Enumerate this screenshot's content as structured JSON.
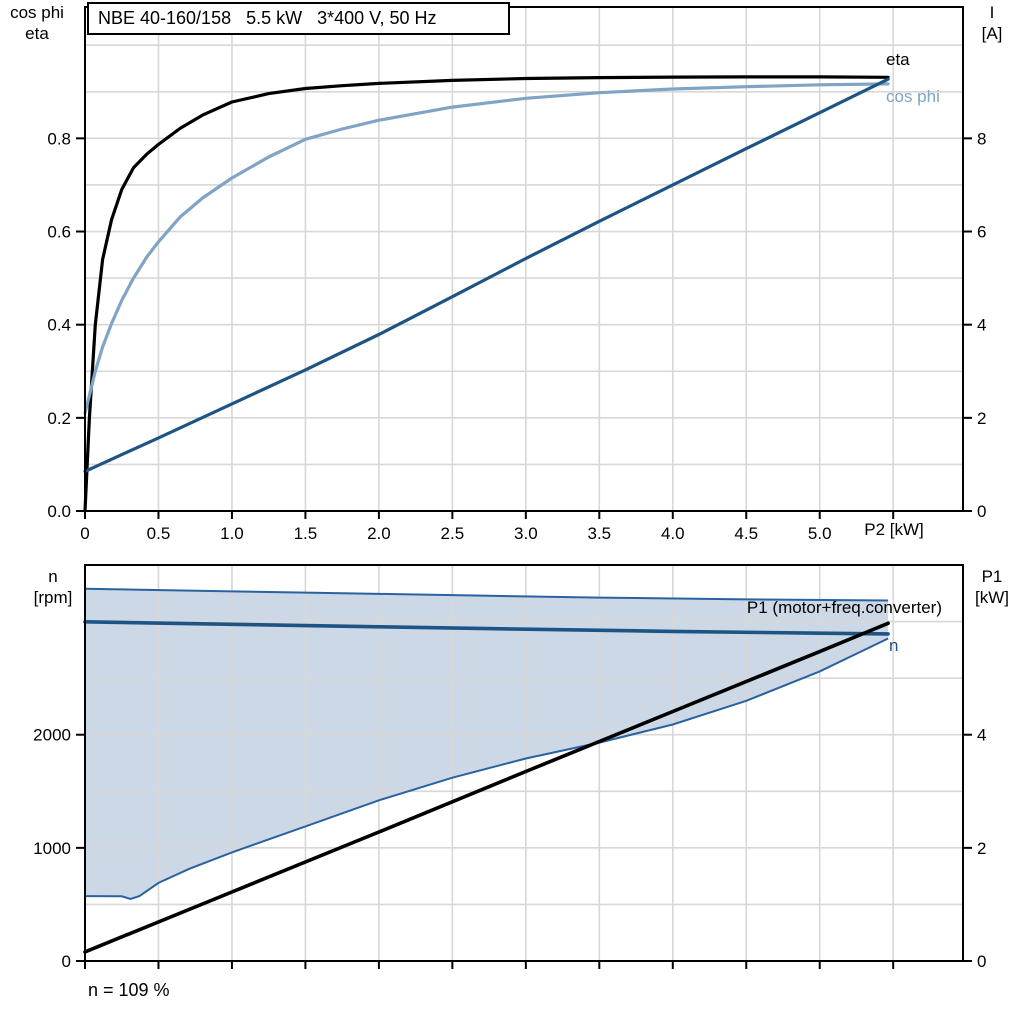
{
  "colors": {
    "dark_blue": "#1d5483",
    "light_blue": "#7fa4c5",
    "band_fill": "#cdd8e6",
    "band_stroke": "#2a62a0",
    "grid": "#d7d7d7",
    "frame": "#000000",
    "background": "#ffffff"
  },
  "chart_data": [
    {
      "id": "motor-performance",
      "type": "line",
      "title": "NBE 40-160/158   5.5 kW   3*400 V, 50 Hz",
      "xlabel": "P2 [kW]",
      "xlim": [
        0,
        5.975
      ],
      "ylim_left": [
        0,
        1.082
      ],
      "ylim_right": [
        0,
        10.82
      ],
      "y_left_title": [
        "cos phi",
        "eta"
      ],
      "y_right_title": [
        "I",
        "[A]"
      ],
      "grid": true,
      "legend_position": "end-of-curve",
      "x_tick_marks": [
        0,
        0.5,
        1,
        1.5,
        2,
        2.5,
        3,
        3.5,
        4,
        4.5,
        5,
        5.5
      ],
      "x_tick_labels": [
        {
          "v": 0,
          "t": "0"
        },
        {
          "v": 0.5,
          "t": "0.5"
        },
        {
          "v": 1,
          "t": "1.0"
        },
        {
          "v": 1.5,
          "t": "1.5"
        },
        {
          "v": 2,
          "t": "2.0"
        },
        {
          "v": 2.5,
          "t": "2.5"
        },
        {
          "v": 3,
          "t": "3.0"
        },
        {
          "v": 3.5,
          "t": "3.5"
        },
        {
          "v": 4,
          "t": "4.0"
        },
        {
          "v": 4.5,
          "t": "4.5"
        },
        {
          "v": 5,
          "t": "5.0"
        }
      ],
      "grid_x": [
        0.5,
        1,
        1.5,
        2,
        2.5,
        3,
        3.5,
        4,
        4.5,
        5,
        5.5
      ],
      "grid_y_left": [
        0.1,
        0.2,
        0.3,
        0.4,
        0.5,
        0.6,
        0.7,
        0.8,
        0.9,
        1.0
      ],
      "y_ticks_left": [
        {
          "v": 0.0,
          "t": "0.0"
        },
        {
          "v": 0.2,
          "t": "0.2"
        },
        {
          "v": 0.4,
          "t": "0.4"
        },
        {
          "v": 0.6,
          "t": "0.6"
        },
        {
          "v": 0.8,
          "t": "0.8"
        }
      ],
      "y_ticks_right": [
        {
          "v": 0,
          "t": "0"
        },
        {
          "v": 2,
          "t": "2"
        },
        {
          "v": 4,
          "t": "4"
        },
        {
          "v": 6,
          "t": "6"
        },
        {
          "v": 8,
          "t": "8"
        }
      ],
      "series": [
        {
          "id": "eta",
          "label": "eta",
          "axis": "left",
          "color": "#000000",
          "width": 3.2,
          "points": [
            [
              0,
              0
            ],
            [
              0.03,
              0.2
            ],
            [
              0.07,
              0.4
            ],
            [
              0.12,
              0.54
            ],
            [
              0.18,
              0.625
            ],
            [
              0.25,
              0.69
            ],
            [
              0.33,
              0.737
            ],
            [
              0.42,
              0.766
            ],
            [
              0.5,
              0.787
            ],
            [
              0.65,
              0.822
            ],
            [
              0.8,
              0.85
            ],
            [
              1.0,
              0.878
            ],
            [
              1.25,
              0.896
            ],
            [
              1.5,
              0.907
            ],
            [
              1.75,
              0.913
            ],
            [
              2.0,
              0.918
            ],
            [
              2.5,
              0.9245
            ],
            [
              3.0,
              0.9285
            ],
            [
              3.5,
              0.9305
            ],
            [
              4.0,
              0.9315
            ],
            [
              4.5,
              0.932
            ],
            [
              5.0,
              0.932
            ],
            [
              5.465,
              0.931
            ]
          ]
        },
        {
          "id": "cos-phi",
          "label": "cos phi",
          "axis": "left",
          "color": "#7fa4c5",
          "width": 3.2,
          "points": [
            [
              0,
              0.21
            ],
            [
              0.07,
              0.3
            ],
            [
              0.12,
              0.352
            ],
            [
              0.18,
              0.402
            ],
            [
              0.25,
              0.452
            ],
            [
              0.33,
              0.5
            ],
            [
              0.42,
              0.545
            ],
            [
              0.5,
              0.578
            ],
            [
              0.65,
              0.632
            ],
            [
              0.8,
              0.672
            ],
            [
              1.0,
              0.715
            ],
            [
              1.25,
              0.76
            ],
            [
              1.5,
              0.798
            ],
            [
              1.75,
              0.82
            ],
            [
              2.0,
              0.839
            ],
            [
              2.5,
              0.867
            ],
            [
              3.0,
              0.886
            ],
            [
              3.5,
              0.898
            ],
            [
              4.0,
              0.906
            ],
            [
              4.5,
              0.911
            ],
            [
              5.0,
              0.915
            ],
            [
              5.465,
              0.917
            ]
          ]
        },
        {
          "id": "current",
          "label": "I",
          "axis": "right",
          "color": "#1d5483",
          "width": 3.2,
          "points": [
            [
              0,
              0.85
            ],
            [
              0.5,
              1.57
            ],
            [
              1.0,
              2.3
            ],
            [
              1.5,
              3.03
            ],
            [
              2.0,
              3.79
            ],
            [
              2.5,
              4.6
            ],
            [
              3.0,
              5.42
            ],
            [
              3.5,
              6.22
            ],
            [
              4.0,
              7.0
            ],
            [
              4.5,
              7.78
            ],
            [
              5.0,
              8.55
            ],
            [
              5.465,
              9.27
            ]
          ]
        }
      ]
    },
    {
      "id": "speed-and-p1",
      "type": "line",
      "title": "",
      "xlabel": "",
      "xlim": [
        0,
        5.975
      ],
      "ylim_left": [
        0,
        3500
      ],
      "ylim_right": [
        0,
        7
      ],
      "y_left_title": [
        "n",
        "[rpm]"
      ],
      "y_right_title": [
        "P1",
        "[kW]"
      ],
      "grid": true,
      "annotation": "n = 109 %",
      "x_tick_marks": [
        0,
        0.5,
        1,
        1.5,
        2,
        2.5,
        3,
        3.5,
        4,
        4.5,
        5,
        5.5
      ],
      "x_tick_labels": [],
      "grid_x": [
        0.5,
        1,
        1.5,
        2,
        2.5,
        3,
        3.5,
        4,
        4.5,
        5,
        5.5
      ],
      "grid_y_left": [
        500,
        1000,
        1500,
        2000,
        2500,
        3000
      ],
      "y_ticks_left": [
        {
          "v": 0,
          "t": "0"
        },
        {
          "v": 1000,
          "t": "1000"
        },
        {
          "v": 2000,
          "t": "2000"
        }
      ],
      "y_ticks_right": [
        {
          "v": 0,
          "t": "0"
        },
        {
          "v": 2,
          "t": "2"
        },
        {
          "v": 4,
          "t": "4"
        }
      ],
      "band": {
        "name": "speed-operating-range",
        "fill": "#cdd8e6",
        "stroke": "#2a62a0",
        "top": [
          [
            0,
            3290
          ],
          [
            1,
            3267
          ],
          [
            2,
            3245
          ],
          [
            2.75,
            3228
          ],
          [
            3.5,
            3212
          ],
          [
            4.5,
            3196
          ],
          [
            5.465,
            3186
          ]
        ],
        "bottom": [
          [
            0,
            574
          ],
          [
            0.25,
            572
          ],
          [
            0.31,
            548
          ],
          [
            0.37,
            574
          ],
          [
            0.5,
            690
          ],
          [
            0.71,
            815
          ],
          [
            1.0,
            960
          ],
          [
            1.5,
            1190
          ],
          [
            2.0,
            1420
          ],
          [
            2.5,
            1620
          ],
          [
            3.0,
            1790
          ],
          [
            3.5,
            1930
          ],
          [
            4.0,
            2090
          ],
          [
            4.5,
            2300
          ],
          [
            5.0,
            2560
          ],
          [
            5.465,
            2850
          ]
        ]
      },
      "series": [
        {
          "id": "speed",
          "label": "n",
          "axis": "left",
          "color": "#1d5483",
          "width": 3.6,
          "points": [
            [
              0,
              2998
            ],
            [
              1,
              2976
            ],
            [
              2,
              2954
            ],
            [
              3,
              2933
            ],
            [
              4,
              2913
            ],
            [
              5,
              2897
            ],
            [
              5.465,
              2891
            ]
          ]
        },
        {
          "id": "p1",
          "label": "P1 (motor+freq.converter)",
          "axis": "right",
          "color": "#000000",
          "width": 3.6,
          "points": [
            [
              0,
              0.16
            ],
            [
              1,
              1.22
            ],
            [
              2,
              2.28
            ],
            [
              3,
              3.35
            ],
            [
              4,
              4.41
            ],
            [
              5,
              5.47
            ],
            [
              5.465,
              5.97
            ]
          ]
        }
      ]
    }
  ]
}
